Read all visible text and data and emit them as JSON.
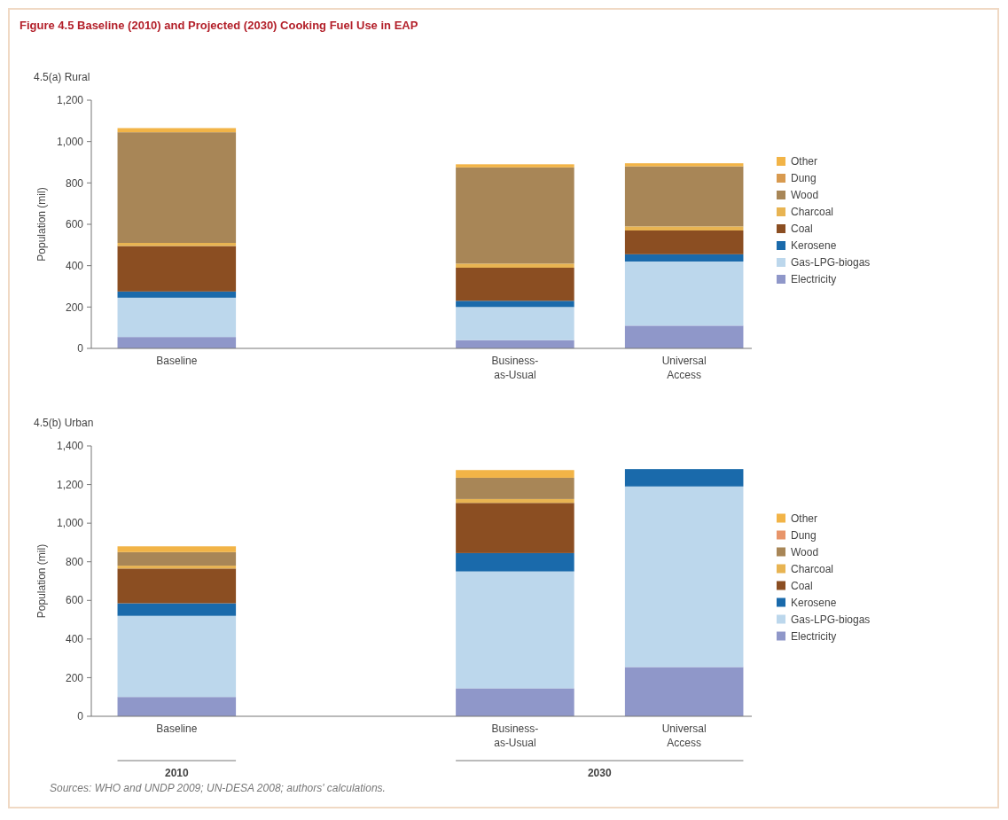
{
  "chart_data": [
    {
      "type": "bar",
      "title": "Figure 4.5   Baseline (2010) and Projected (2030) Cooking Fuel Use in EAP",
      "subtitle": "4.5(a) Rural",
      "ylabel": "Population (mil)",
      "categories": [
        "Baseline",
        null,
        "Business-as-Usual",
        "Universal Access"
      ],
      "stacked": true,
      "legend": "right",
      "ylim": [
        0,
        1200
      ],
      "yticks": [
        0,
        200,
        400,
        600,
        800,
        {
          "value": 1000,
          "label": "1,000"
        },
        {
          "value": 1200,
          "label": "1,200"
        }
      ],
      "series": [
        {
          "name": "Electricity",
          "color": "#8f97c9",
          "values": [
            55,
            null,
            40,
            110
          ]
        },
        {
          "name": "Gas-LPG-biogas",
          "color": "#bcd7ec",
          "values": [
            190,
            null,
            160,
            310
          ]
        },
        {
          "name": "Kerosene",
          "color": "#1a6aab",
          "values": [
            30,
            null,
            30,
            35
          ]
        },
        {
          "name": "Coal",
          "color": "#8b4e22",
          "values": [
            220,
            null,
            160,
            115
          ]
        },
        {
          "name": "Charcoal",
          "color": "#e8b452",
          "values": [
            15,
            null,
            20,
            20
          ]
        },
        {
          "name": "Wood",
          "color": "#a88657",
          "values": [
            535,
            null,
            465,
            290
          ]
        },
        {
          "name": "Dung",
          "color": "#d89a4f",
          "values": [
            0,
            null,
            0,
            0
          ]
        },
        {
          "name": "Other",
          "color": "#f2b447",
          "values": [
            20,
            null,
            15,
            15
          ]
        }
      ]
    },
    {
      "type": "bar",
      "subtitle": "4.5(b) Urban",
      "ylabel": "Population (mil)",
      "categories": [
        "Baseline",
        null,
        "Business-as-Usual",
        "Universal Access"
      ],
      "stacked": true,
      "legend": "right",
      "ylim": [
        0,
        1400
      ],
      "yticks": [
        0,
        200,
        400,
        600,
        800,
        {
          "value": 1000,
          "label": "1,000"
        },
        {
          "value": 1200,
          "label": "1,200"
        },
        {
          "value": 1400,
          "label": "1,400"
        }
      ],
      "series": [
        {
          "name": "Electricity",
          "color": "#8f97c9",
          "values": [
            100,
            null,
            145,
            255
          ]
        },
        {
          "name": "Gas-LPG-biogas",
          "color": "#bcd7ec",
          "values": [
            420,
            null,
            605,
            935
          ]
        },
        {
          "name": "Kerosene",
          "color": "#1a6aab",
          "values": [
            65,
            null,
            95,
            90
          ]
        },
        {
          "name": "Coal",
          "color": "#8b4e22",
          "values": [
            180,
            null,
            260,
            0
          ]
        },
        {
          "name": "Charcoal",
          "color": "#e8b452",
          "values": [
            15,
            null,
            20,
            0
          ]
        },
        {
          "name": "Wood",
          "color": "#a88657",
          "values": [
            70,
            null,
            110,
            0
          ]
        },
        {
          "name": "Dung",
          "color": "#e8956a",
          "values": [
            0,
            null,
            0,
            0
          ]
        },
        {
          "name": "Other",
          "color": "#f2b447",
          "values": [
            30,
            null,
            40,
            0
          ]
        }
      ],
      "annotations": [
        "2010",
        "2030",
        "Sources: WHO and UNDP 2009; UN-DESA 2008; authors' calculations."
      ]
    }
  ]
}
